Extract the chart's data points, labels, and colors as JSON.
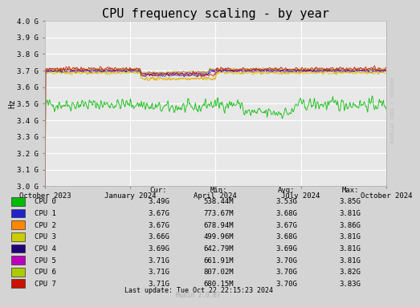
{
  "title": "CPU frequency scaling - by year",
  "ylabel": "Hz",
  "yticks": [
    3.0,
    3.1,
    3.2,
    3.3,
    3.4,
    3.5,
    3.6,
    3.7,
    3.8,
    3.9,
    4.0
  ],
  "ytick_labels": [
    "3.0 G",
    "3.1 G",
    "3.2 G",
    "3.3 G",
    "3.4 G",
    "3.5 G",
    "3.6 G",
    "3.7 G",
    "3.8 G",
    "3.9 G",
    "4.0 G"
  ],
  "ylim": [
    3.0,
    4.0
  ],
  "xtick_labels": [
    "October 2023",
    "January 2024",
    "April 2024",
    "July 2024",
    "October 2024"
  ],
  "bg_color": "#d4d4d4",
  "plot_bg_color": "#e8e8e8",
  "grid_color": "#ffffff",
  "cpu_names": [
    "CPU 0",
    "CPU 1",
    "CPU 2",
    "CPU 3",
    "CPU 4",
    "CPU 5",
    "CPU 6",
    "CPU 7"
  ],
  "cur_values": [
    "3.49G",
    "3.67G",
    "3.67G",
    "3.66G",
    "3.69G",
    "3.71G",
    "3.71G",
    "3.71G"
  ],
  "min_values": [
    "538.44M",
    "773.67M",
    "678.94M",
    "499.96M",
    "642.79M",
    "661.91M",
    "807.02M",
    "680.15M"
  ],
  "avg_values": [
    "3.53G",
    "3.68G",
    "3.67G",
    "3.68G",
    "3.69G",
    "3.70G",
    "3.70G",
    "3.70G"
  ],
  "max_values": [
    "3.85G",
    "3.81G",
    "3.86G",
    "3.81G",
    "3.81G",
    "3.81G",
    "3.82G",
    "3.83G"
  ],
  "last_update": "Last update: Tue Oct 22 22:15:23 2024",
  "munin_version": "Munin 2.0.67",
  "rrdtool_label": "RRDTOOL / TOBI OETIKER",
  "legend_colors": [
    "#00bb00",
    "#2222cc",
    "#ff8800",
    "#cccc00",
    "#220077",
    "#bb00bb",
    "#aacc00",
    "#cc1100"
  ],
  "n_points": 500
}
